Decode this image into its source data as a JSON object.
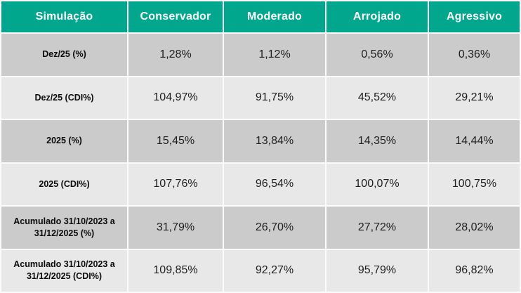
{
  "table": {
    "columns": [
      "Simulação",
      "Conservador",
      "Moderado",
      "Arrojado",
      "Agressivo"
    ],
    "rows": [
      {
        "label": "Dez/25 (%)",
        "values": [
          "1,28%",
          "1,12%",
          "0,56%",
          "0,36%"
        ]
      },
      {
        "label": "Dez/25 (CDI%)",
        "values": [
          "104,97%",
          "91,75%",
          "45,52%",
          "29,21%"
        ]
      },
      {
        "label": "2025 (%)",
        "values": [
          "15,45%",
          "13,84%",
          "14,35%",
          "14,44%"
        ]
      },
      {
        "label": "2025 (CDI%)",
        "values": [
          "107,76%",
          "96,54%",
          "100,07%",
          "100,75%"
        ]
      },
      {
        "label": "Acumulado 31/10/2023 a 31/12/2025 (%)",
        "values": [
          "31,79%",
          "26,70%",
          "27,72%",
          "28,02%"
        ]
      },
      {
        "label": "Acumulado 31/10/2023 a 31/12/2025 (CDI%)",
        "values": [
          "109,85%",
          "92,27%",
          "95,79%",
          "96,82%"
        ]
      }
    ],
    "colors": {
      "header_bg": "#00a78c",
      "header_text": "#ffffff",
      "row_dark_bg": "#cbcbcb",
      "row_light_bg": "#e8e8e8",
      "gap": "#fbfbfb",
      "label_text": "#0b0b0b",
      "value_text": "#1e1e1e"
    }
  },
  "chart_data": {
    "type": "table",
    "title": "Simulação",
    "columns": [
      "Simulação",
      "Conservador",
      "Moderado",
      "Arrojado",
      "Agressivo"
    ],
    "rows": [
      [
        "Dez/25 (%)",
        "1,28%",
        "1,12%",
        "0,56%",
        "0,36%"
      ],
      [
        "Dez/25 (CDI%)",
        "104,97%",
        "91,75%",
        "45,52%",
        "29,21%"
      ],
      [
        "2025 (%)",
        "15,45%",
        "13,84%",
        "14,35%",
        "14,44%"
      ],
      [
        "2025 (CDI%)",
        "107,76%",
        "96,54%",
        "100,07%",
        "100,75%"
      ],
      [
        "Acumulado 31/10/2023 a 31/12/2025 (%)",
        "31,79%",
        "26,70%",
        "27,72%",
        "28,02%"
      ],
      [
        "Acumulado 31/10/2023 a 31/12/2025 (CDI%)",
        "109,85%",
        "92,27%",
        "95,79%",
        "96,82%"
      ]
    ],
    "series": [
      {
        "name": "Conservador",
        "values": [
          1.28,
          104.97,
          15.45,
          107.76,
          31.79,
          109.85
        ]
      },
      {
        "name": "Moderado",
        "values": [
          1.12,
          91.75,
          13.84,
          96.54,
          26.7,
          92.27
        ]
      },
      {
        "name": "Arrojado",
        "values": [
          0.56,
          45.52,
          14.35,
          100.07,
          27.72,
          95.79
        ]
      },
      {
        "name": "Agressivo",
        "values": [
          0.36,
          29.21,
          14.44,
          100.75,
          28.02,
          96.82
        ]
      }
    ],
    "categories": [
      "Dez/25 (%)",
      "Dez/25 (CDI%)",
      "2025 (%)",
      "2025 (CDI%)",
      "Acumulado 31/10/2023 a 31/12/2025 (%)",
      "Acumulado 31/10/2023 a 31/12/2025 (CDI%)"
    ]
  }
}
